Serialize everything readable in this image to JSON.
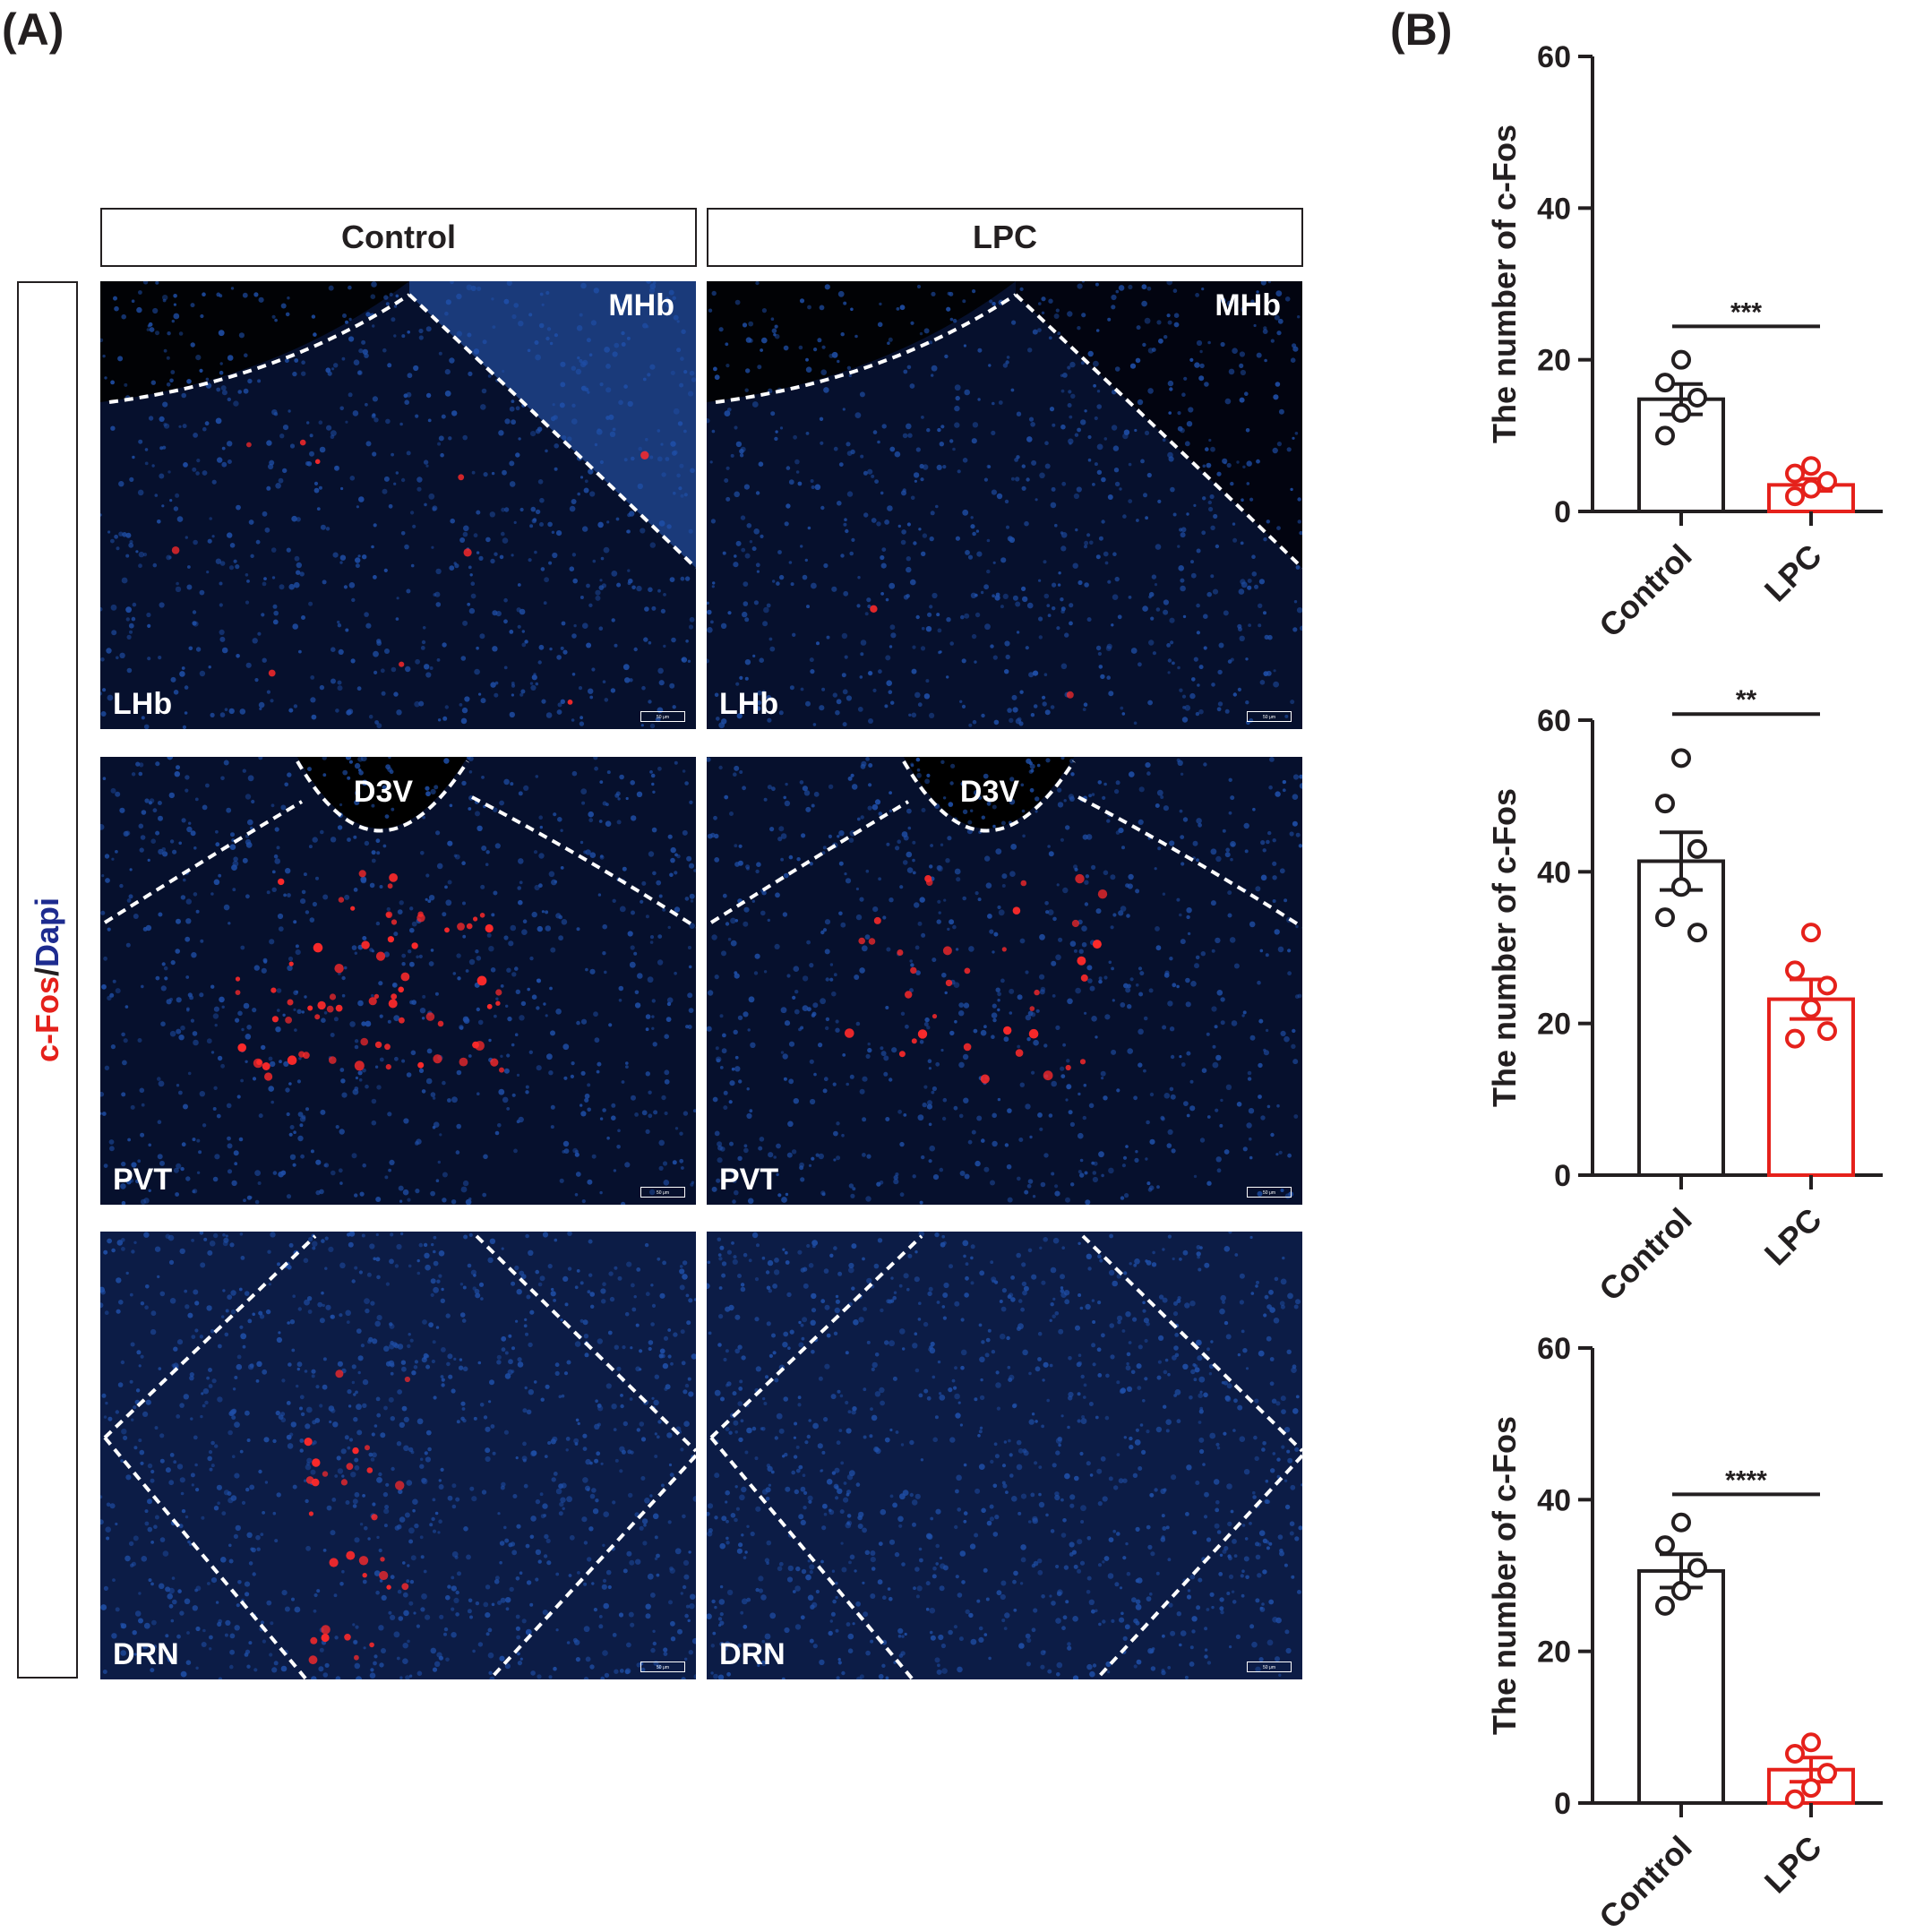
{
  "panel_a": {
    "letter": "(A)",
    "columns": [
      "Control",
      "LPC"
    ],
    "row_label_red": "c-Fos",
    "row_label_sep": "/",
    "row_label_blue": "Dapi",
    "scale_bar_text": "50 μm",
    "rows": [
      {
        "region": "LHb",
        "landmark": "MHb"
      },
      {
        "region": "PVT",
        "landmark": "D3V"
      },
      {
        "region": "DRN",
        "landmark": ""
      }
    ]
  },
  "panel_b": {
    "letter": "(B)"
  },
  "colors": {
    "control": "#231f20",
    "lpc": "#e5211b",
    "dapi": "#1f4fa8",
    "cfos": "#ff2a2a"
  },
  "chart_data": [
    {
      "type": "bar",
      "categories": [
        "Control",
        "LPC"
      ],
      "values": [
        14.8,
        3.5
      ],
      "sem": [
        2.0,
        0.8
      ],
      "points": [
        [
          20,
          17,
          15,
          13,
          10
        ],
        [
          6,
          5,
          4,
          3,
          2
        ]
      ],
      "ylabel": "The number of c-Fos",
      "ylim": [
        0,
        60
      ],
      "yticks": [
        0,
        20,
        40,
        60
      ],
      "significance": "***"
    },
    {
      "type": "bar",
      "categories": [
        "Control",
        "LPC"
      ],
      "values": [
        41.4,
        23.2
      ],
      "sem": [
        3.8,
        2.6
      ],
      "points": [
        [
          55,
          49,
          43,
          38,
          34,
          32
        ],
        [
          32,
          27,
          25,
          22,
          18,
          19
        ]
      ],
      "ylabel": "The number of c-Fos",
      "ylim": [
        0,
        60
      ],
      "yticks": [
        0,
        20,
        40,
        60
      ],
      "significance": "**"
    },
    {
      "type": "bar",
      "categories": [
        "Control",
        "LPC"
      ],
      "values": [
        30.6,
        4.4
      ],
      "sem": [
        2.2,
        1.6
      ],
      "points": [
        [
          37,
          34,
          31,
          28,
          26
        ],
        [
          8,
          6.5,
          4,
          2,
          0.5
        ]
      ],
      "ylabel": "The number of c-Fos",
      "ylim": [
        0,
        60
      ],
      "yticks": [
        0,
        20,
        40,
        60
      ],
      "significance": "****"
    }
  ]
}
